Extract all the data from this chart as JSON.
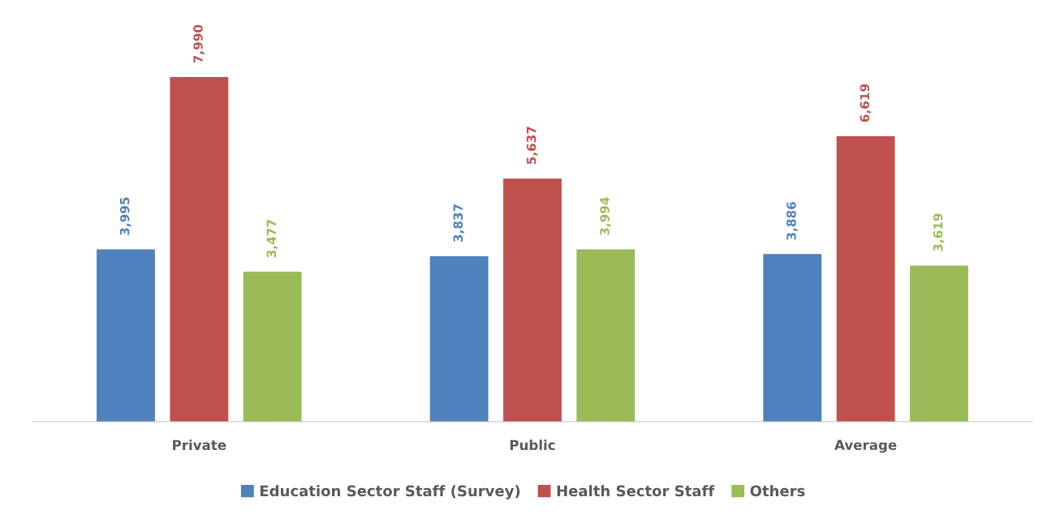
{
  "chart_data": {
    "type": "bar",
    "categories": [
      "Private",
      "Public",
      "Average"
    ],
    "series": [
      {
        "name": "Education Sector Staff (Survey)",
        "color": "#4f81bd",
        "values": [
          3995,
          3837,
          3886
        ],
        "value_labels": [
          "3,995",
          "3,837",
          "3,886"
        ]
      },
      {
        "name": "Health Sector Staff",
        "color": "#c0504d",
        "values": [
          7990,
          5637,
          6619
        ],
        "value_labels": [
          "7,990",
          "5,637",
          "6,619"
        ]
      },
      {
        "name": "Others",
        "color": "#9bbb59",
        "values": [
          3477,
          3994,
          3619
        ],
        "value_labels": [
          "3,477",
          "3,994",
          "3,619"
        ]
      }
    ],
    "legend": "bottom",
    "grid": false
  }
}
